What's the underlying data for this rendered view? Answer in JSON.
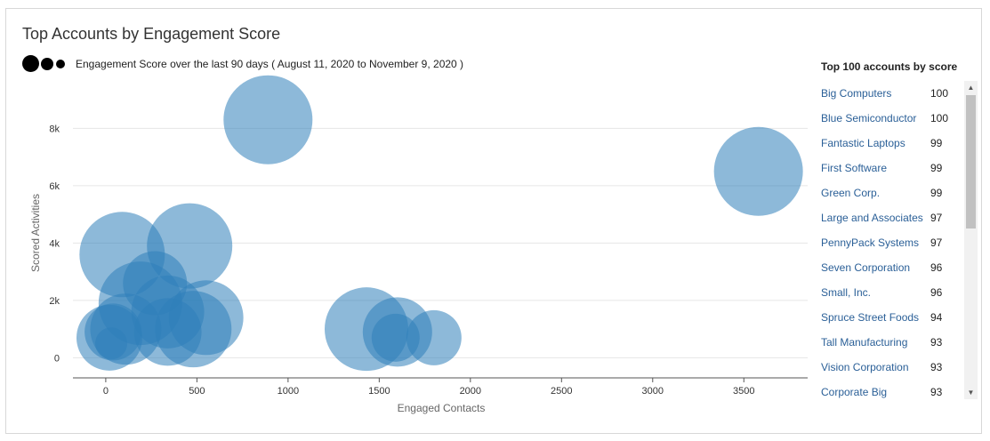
{
  "title": "Top Accounts by Engagement Score",
  "legend_label": "Engagement Score over the last 90 days ( August 11, 2020 to November 9, 2020 )",
  "side_panel": {
    "title": "Top 100 accounts by score",
    "items": [
      {
        "name": "Big Computers",
        "score": "100"
      },
      {
        "name": "Blue Semiconductor",
        "score": "100"
      },
      {
        "name": "Fantastic Laptops",
        "score": "99"
      },
      {
        "name": "First Software",
        "score": "99"
      },
      {
        "name": "Green Corp.",
        "score": "99"
      },
      {
        "name": "Large and Associates",
        "score": "97"
      },
      {
        "name": "PennyPack Systems",
        "score": "97"
      },
      {
        "name": "Seven Corporation",
        "score": "96"
      },
      {
        "name": "Small, Inc.",
        "score": "96"
      },
      {
        "name": "Spruce Street Foods",
        "score": "94"
      },
      {
        "name": "Tall Manufacturing",
        "score": "93"
      },
      {
        "name": "Vision Corporation",
        "score": "93"
      },
      {
        "name": "Corporate Big",
        "score": "93"
      }
    ]
  },
  "colors": {
    "bubble": "#2f7fba",
    "bubble_opacity": 0.55,
    "link": "#2a5f97"
  },
  "chart_data": {
    "type": "scatter",
    "subtype": "bubble",
    "xlabel": "Engaged Contacts",
    "ylabel": "Scored Activities",
    "xlim": [
      -180,
      3850
    ],
    "ylim": [
      -700,
      9500
    ],
    "xticks": [
      0,
      500,
      1000,
      1500,
      2000,
      2500,
      3000,
      3500
    ],
    "xtick_labels": [
      "0",
      "500",
      "1000",
      "1500",
      "2000",
      "2500",
      "3000",
      "3500"
    ],
    "yticks": [
      0,
      2000,
      4000,
      6000,
      8000
    ],
    "ytick_labels": [
      "0",
      "2k",
      "4k",
      "6k",
      "8k"
    ],
    "grid": "horizontal",
    "points": [
      {
        "x": 890,
        "y": 8300,
        "size": 100
      },
      {
        "x": 3580,
        "y": 6500,
        "size": 100
      },
      {
        "x": 90,
        "y": 3600,
        "size": 96
      },
      {
        "x": 460,
        "y": 3900,
        "size": 96
      },
      {
        "x": 270,
        "y": 2600,
        "size": 72
      },
      {
        "x": 190,
        "y": 1900,
        "size": 94
      },
      {
        "x": 340,
        "y": 1600,
        "size": 82
      },
      {
        "x": 550,
        "y": 1400,
        "size": 84
      },
      {
        "x": 480,
        "y": 1000,
        "size": 86
      },
      {
        "x": 340,
        "y": 900,
        "size": 76
      },
      {
        "x": 110,
        "y": 1000,
        "size": 80
      },
      {
        "x": 40,
        "y": 900,
        "size": 64
      },
      {
        "x": 20,
        "y": 700,
        "size": 74
      },
      {
        "x": 30,
        "y": 500,
        "size": 36
      },
      {
        "x": 1430,
        "y": 1000,
        "size": 94
      },
      {
        "x": 1600,
        "y": 900,
        "size": 78
      },
      {
        "x": 1590,
        "y": 700,
        "size": 54
      },
      {
        "x": 1800,
        "y": 700,
        "size": 62
      }
    ]
  }
}
